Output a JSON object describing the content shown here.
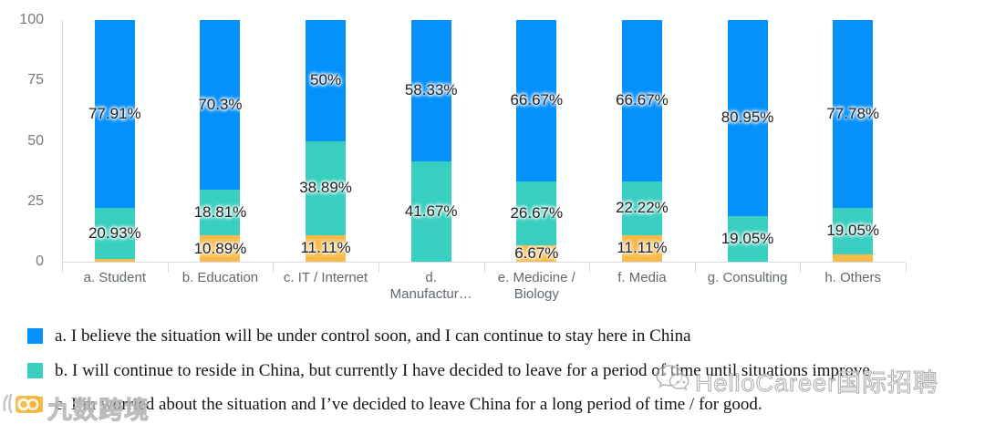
{
  "chart_data": {
    "type": "bar",
    "stacked": true,
    "stack_unit": "percent",
    "title": "",
    "xlabel": "",
    "ylabel": "",
    "ylim": [
      0,
      100
    ],
    "yticks": [
      0,
      25,
      50,
      75,
      100
    ],
    "grid": false,
    "legend_position": "bottom",
    "categories": [
      "a. Student",
      "b. Education",
      "c. IT / Internet",
      "d. Manufactur…",
      "e. Medicine / Biology",
      "f. Media",
      "g. Consulting",
      "h. Others"
    ],
    "series": [
      {
        "name": "a.  I believe the situation will be under control soon, and I can continue to stay here in China",
        "color": "#0591fb",
        "values": [
          77.91,
          70.3,
          50,
          58.33,
          66.67,
          66.67,
          80.95,
          77.78
        ],
        "labels": [
          "77.91%",
          "70.3%",
          "50%",
          "58.33%",
          "66.67%",
          "66.67%",
          "80.95%",
          "77.78%"
        ]
      },
      {
        "name": "b.  I will continue to reside in China, but currently I have decided to leave for a period of time until situations improve",
        "color": "#39cfc0",
        "values": [
          20.93,
          18.81,
          38.89,
          41.67,
          26.67,
          22.22,
          19.05,
          19.05
        ],
        "labels": [
          "20.93%",
          "18.81%",
          "38.89%",
          "41.67%",
          "26.67%",
          "22.22%",
          "19.05%",
          "19.05%"
        ]
      },
      {
        "name": "c.  I’m worried about the situation and I’ve decided to leave China for a long period of time / for good.",
        "color": "#f8bb49",
        "values": [
          1.16,
          10.89,
          11.11,
          0,
          6.67,
          11.11,
          0,
          3.17
        ],
        "labels": [
          "",
          "10.89%",
          "11.11%",
          "",
          "6.67%",
          "11.11%",
          "",
          ""
        ]
      }
    ]
  },
  "legend": {
    "items": [
      {
        "label": "a.  I believe the situation will be under control soon, and I can continue to stay here in China",
        "color": "#0591fb"
      },
      {
        "label": "b.  I will continue to reside in China, but currently I have decided to leave for a period of time until situations improve",
        "color": "#39cfc0"
      },
      {
        "label": "c.  I’m worried about the situation and I’ve decided to leave China for a long period of time / for good.",
        "color": "#f8bb49"
      }
    ]
  },
  "watermarks": {
    "left": {
      "icon": "glasses-logo-icon",
      "text": "九数跨境"
    },
    "right": {
      "icon": "wechat-icon",
      "text": "HelloCareer国际招聘"
    }
  }
}
